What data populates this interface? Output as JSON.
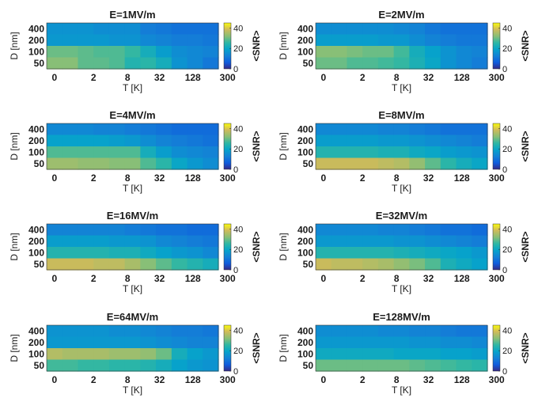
{
  "chart_data": {
    "type": "heatmap",
    "layout": {
      "rows": 4,
      "cols": 2
    },
    "x_ticks": [
      "0",
      "2",
      "8",
      "32",
      "128",
      "300"
    ],
    "y_ticks": [
      "400",
      "200",
      "100",
      "50"
    ],
    "xlabel": "T [K]",
    "ylabel": "D [nm]",
    "colorbar": {
      "label": "<SNR>",
      "ticks": [
        "40",
        "20",
        "0"
      ],
      "range": [
        0,
        45
      ],
      "colormap": "parula"
    },
    "cols_per_panel": 11,
    "row_order": "top-to-bottom: 400, 200, 100, 50 nm",
    "panels": [
      {
        "title": "E=1MV/m",
        "z": [
          [
            16,
            16,
            16,
            15,
            15,
            15,
            12,
            11,
            10,
            10,
            10
          ],
          [
            17,
            17,
            17,
            17,
            16,
            16,
            14,
            13,
            12,
            12,
            11
          ],
          [
            30,
            30,
            29,
            28,
            28,
            26,
            22,
            18,
            15,
            14,
            13
          ],
          [
            32,
            32,
            29,
            29,
            28,
            24,
            25,
            22,
            16,
            14,
            11
          ]
        ]
      },
      {
        "title": "E=2MV/m",
        "z": [
          [
            15,
            15,
            15,
            15,
            15,
            14,
            13,
            11,
            10,
            10,
            10
          ],
          [
            18,
            18,
            18,
            18,
            17,
            17,
            15,
            13,
            12,
            11,
            11
          ],
          [
            32,
            32,
            31,
            30,
            30,
            27,
            22,
            19,
            16,
            14,
            13
          ],
          [
            30,
            30,
            28,
            28,
            27,
            26,
            23,
            20,
            16,
            14,
            12
          ]
        ]
      },
      {
        "title": "E=4MV/m",
        "z": [
          [
            14,
            14,
            14,
            13,
            13,
            12,
            11,
            10,
            9,
            9,
            9
          ],
          [
            19,
            19,
            19,
            19,
            18,
            17,
            15,
            13,
            12,
            11,
            10
          ],
          [
            28,
            28,
            28,
            28,
            28,
            28,
            22,
            18,
            15,
            14,
            13
          ],
          [
            34,
            34,
            33,
            33,
            32,
            32,
            28,
            25,
            20,
            17,
            15
          ]
        ]
      },
      {
        "title": "E=8MV/m",
        "z": [
          [
            14,
            14,
            14,
            14,
            13,
            13,
            12,
            11,
            10,
            10,
            10
          ],
          [
            18,
            18,
            18,
            18,
            17,
            17,
            16,
            15,
            14,
            13,
            12
          ],
          [
            24,
            24,
            24,
            24,
            23,
            23,
            21,
            20,
            18,
            17,
            16
          ],
          [
            38,
            38,
            38,
            38,
            37,
            36,
            33,
            29,
            25,
            22,
            20
          ]
        ]
      },
      {
        "title": "E=16MV/m",
        "z": [
          [
            13,
            13,
            13,
            13,
            13,
            12,
            11,
            10,
            10,
            9,
            9
          ],
          [
            18,
            18,
            18,
            18,
            17,
            17,
            16,
            14,
            13,
            12,
            11
          ],
          [
            24,
            24,
            24,
            24,
            23,
            23,
            21,
            19,
            17,
            16,
            14
          ],
          [
            38,
            38,
            38,
            37,
            37,
            35,
            32,
            29,
            26,
            24,
            22
          ]
        ]
      },
      {
        "title": "E=32MV/m",
        "z": [
          [
            14,
            14,
            14,
            14,
            13,
            13,
            12,
            11,
            10,
            10,
            9
          ],
          [
            17,
            17,
            17,
            17,
            17,
            16,
            16,
            15,
            14,
            13,
            12
          ],
          [
            24,
            24,
            24,
            24,
            24,
            23,
            22,
            21,
            20,
            19,
            17
          ],
          [
            38,
            37,
            37,
            36,
            35,
            33,
            31,
            28,
            23,
            21,
            19
          ]
        ]
      },
      {
        "title": "E=64MV/m",
        "z": [
          [
            16,
            16,
            16,
            16,
            15,
            15,
            14,
            13,
            12,
            12,
            11
          ],
          [
            17,
            17,
            17,
            17,
            17,
            17,
            16,
            15,
            14,
            13,
            13
          ],
          [
            36,
            35,
            35,
            35,
            34,
            34,
            33,
            30,
            22,
            19,
            17
          ],
          [
            27,
            27,
            26,
            26,
            25,
            25,
            24,
            22,
            19,
            17,
            16
          ]
        ]
      },
      {
        "title": "E=128MV/m",
        "z": [
          [
            15,
            15,
            15,
            15,
            14,
            14,
            13,
            13,
            12,
            11,
            11
          ],
          [
            17,
            17,
            17,
            17,
            17,
            17,
            16,
            16,
            15,
            15,
            14
          ],
          [
            21,
            21,
            21,
            21,
            21,
            20,
            20,
            20,
            19,
            19,
            18
          ],
          [
            30,
            30,
            30,
            30,
            30,
            30,
            29,
            28,
            27,
            26,
            25
          ]
        ]
      }
    ]
  }
}
